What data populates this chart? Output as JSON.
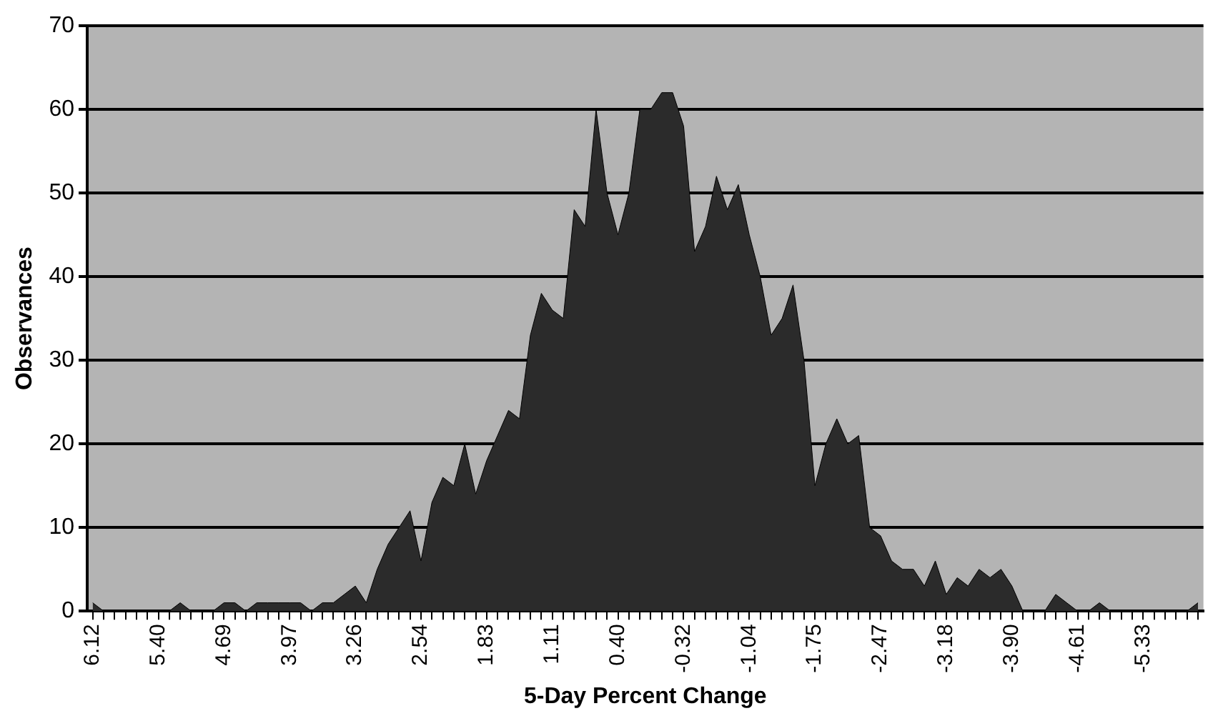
{
  "chart_data": {
    "type": "area",
    "xlabel": "5-Day Percent Change",
    "ylabel": "Observances",
    "categories": [
      "6.12",
      null,
      null,
      null,
      null,
      null,
      "5.40",
      null,
      null,
      null,
      null,
      null,
      "4.69",
      null,
      null,
      null,
      null,
      null,
      "3.97",
      null,
      null,
      null,
      null,
      null,
      "3.26",
      null,
      null,
      null,
      null,
      null,
      "2.54",
      null,
      null,
      null,
      null,
      null,
      "1.83",
      null,
      null,
      null,
      null,
      null,
      "1.11",
      null,
      null,
      null,
      null,
      null,
      "0.40",
      null,
      null,
      null,
      null,
      null,
      "-0.32",
      null,
      null,
      null,
      null,
      null,
      "-1.04",
      null,
      null,
      null,
      null,
      null,
      "-1.75",
      null,
      null,
      null,
      null,
      null,
      "-2.47",
      null,
      null,
      null,
      null,
      null,
      "-3.18",
      null,
      null,
      null,
      null,
      null,
      "-3.90",
      null,
      null,
      null,
      null,
      null,
      "-4.61",
      null,
      null,
      null,
      null,
      null,
      "-5.33",
      null,
      null,
      null,
      null,
      null
    ],
    "values": [
      1,
      0,
      0,
      0,
      0,
      0,
      0,
      0,
      1,
      0,
      0,
      0,
      1,
      1,
      0,
      1,
      1,
      1,
      1,
      1,
      0,
      1,
      1,
      2,
      3,
      1,
      5,
      8,
      10,
      12,
      6,
      13,
      16,
      15,
      20,
      14,
      18,
      21,
      24,
      23,
      33,
      38,
      36,
      35,
      48,
      46,
      60,
      50,
      45,
      50,
      60,
      60,
      62,
      62,
      58,
      43,
      46,
      52,
      48,
      51,
      45,
      40,
      33,
      35,
      39,
      30,
      15,
      20,
      23,
      20,
      21,
      10,
      9,
      6,
      5,
      5,
      3,
      6,
      2,
      4,
      3,
      5,
      4,
      5,
      3,
      0,
      0,
      0,
      2,
      1,
      0,
      0,
      1,
      0,
      0,
      0,
      0,
      0,
      0,
      0,
      0,
      1
    ],
    "color": "#2b2b2b",
    "ylim": [
      0,
      70
    ],
    "yticks": [
      0,
      10,
      20,
      30,
      40,
      50,
      60,
      70
    ],
    "grid": "y"
  }
}
